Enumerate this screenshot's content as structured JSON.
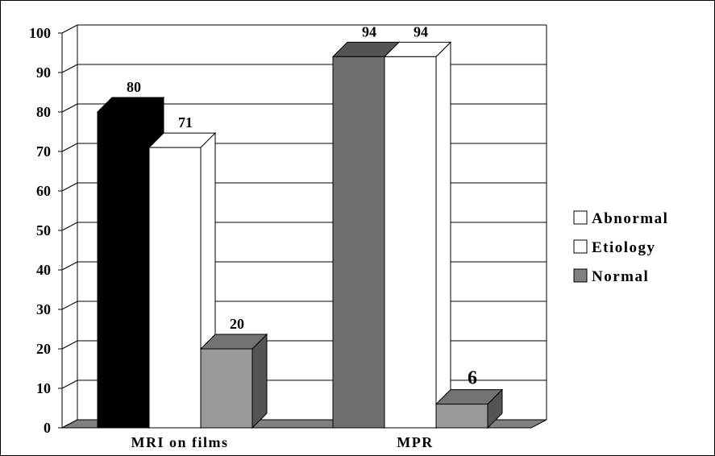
{
  "chart_data": {
    "type": "bar",
    "title": "",
    "xlabel": "",
    "ylabel": "",
    "ylim": [
      0,
      100
    ],
    "yticks": [
      "0",
      "10",
      "20",
      "30",
      "40",
      "50",
      "60",
      "70",
      "80",
      "90",
      "100"
    ],
    "categories": [
      "MRI on films",
      "MPR"
    ],
    "series": [
      {
        "name": "Abnormal",
        "values": [
          80,
          94
        ],
        "colors": [
          "#000000",
          "#707070"
        ]
      },
      {
        "name": "Etiology",
        "values": [
          71,
          94
        ],
        "colors": [
          "#ffffff",
          "#ffffff"
        ]
      },
      {
        "name": "Normal",
        "values": [
          20,
          6
        ],
        "colors": [
          "#999999",
          "#999999"
        ]
      }
    ],
    "data_labels": [
      [
        "80",
        "94"
      ],
      [
        "71",
        "94"
      ],
      [
        "20",
        "6"
      ]
    ],
    "legend": {
      "position": "right",
      "items": [
        {
          "label": "Abnormal",
          "color": "#ffffff"
        },
        {
          "label": "Etiology",
          "color": "#ffffff"
        },
        {
          "label": "Normal",
          "color": "#808080"
        }
      ]
    },
    "grid": true,
    "three_d": true
  }
}
